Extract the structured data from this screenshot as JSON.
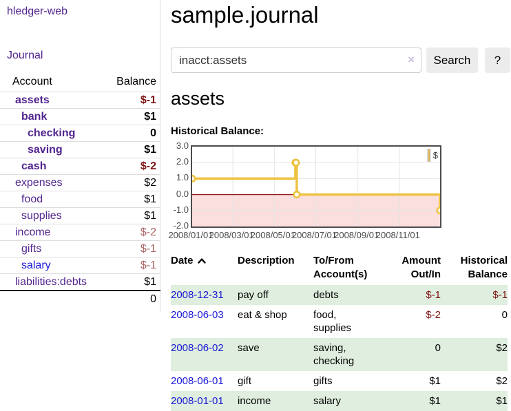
{
  "sidebar": {
    "brand": "hledger-web",
    "journal_link": "Journal",
    "accounts": {
      "headers": {
        "account": "Account",
        "balance": "Balance"
      },
      "rows": [
        {
          "name": "assets",
          "indent": 1,
          "in_account": true,
          "balance": "$-1",
          "neg": "strong",
          "link_style": "purple"
        },
        {
          "name": "bank",
          "indent": 2,
          "in_account": true,
          "balance": "$1",
          "neg": "none",
          "link_style": "purple"
        },
        {
          "name": "checking",
          "indent": 3,
          "in_account": true,
          "balance": "0",
          "neg": "none",
          "link_style": "purple"
        },
        {
          "name": "saving",
          "indent": 3,
          "in_account": true,
          "balance": "$1",
          "neg": "none",
          "link_style": "purple"
        },
        {
          "name": "cash",
          "indent": 2,
          "in_account": true,
          "balance": "$-2",
          "neg": "strong",
          "link_style": "purple"
        },
        {
          "name": "expenses",
          "indent": 1,
          "in_account": false,
          "balance": "$2",
          "neg": "none",
          "link_style": "purple"
        },
        {
          "name": "food",
          "indent": 2,
          "in_account": false,
          "balance": "$1",
          "neg": "none",
          "link_style": "purple"
        },
        {
          "name": "supplies",
          "indent": 2,
          "in_account": false,
          "balance": "$1",
          "neg": "none",
          "link_style": "purple"
        },
        {
          "name": "income",
          "indent": 1,
          "in_account": false,
          "balance": "$-2",
          "neg": "light",
          "link_style": "purple"
        },
        {
          "name": "gifts",
          "indent": 2,
          "in_account": false,
          "balance": "$-1",
          "neg": "light",
          "link_style": "purple"
        },
        {
          "name": "salary",
          "indent": 2,
          "in_account": false,
          "balance": "$-1",
          "neg": "light",
          "link_style": "blue"
        },
        {
          "name": "liabilities:debts",
          "indent": 1,
          "in_account": false,
          "balance": "$1",
          "neg": "none",
          "link_style": "purple"
        }
      ],
      "total": "0"
    }
  },
  "main": {
    "title": "sample.journal",
    "account_heading": "assets",
    "chart_label": "Historical Balance:"
  },
  "search": {
    "query": "inacct:assets",
    "clear_icon": "×",
    "button_label": "Search",
    "help_label": "?"
  },
  "chart_data": {
    "type": "line",
    "step": true,
    "title": "Historical Balance:",
    "legend": {
      "position": "top-right",
      "entries": [
        "$"
      ]
    },
    "x_domain_dates": [
      "2008-01-01",
      "2008-12-31"
    ],
    "x_domain_days": [
      0,
      365
    ],
    "y_domain": [
      -2,
      3
    ],
    "grid": true,
    "series": [
      {
        "name": "$",
        "color": "#edc240",
        "points": [
          {
            "date": "2008-01-01",
            "day": 0,
            "value": 1
          },
          {
            "date": "2008-06-01",
            "day": 152,
            "value": 2
          },
          {
            "date": "2008-06-02",
            "day": 153,
            "value": 2
          },
          {
            "date": "2008-06-03",
            "day": 154,
            "value": 0
          },
          {
            "date": "2008-12-31",
            "day": 365,
            "value": -1
          }
        ]
      }
    ],
    "x_ticks": [
      {
        "day": 0,
        "label": "2008/01/01"
      },
      {
        "day": 60,
        "label": "2008/03/01"
      },
      {
        "day": 121,
        "label": "2008/05/01"
      },
      {
        "day": 182,
        "label": "2008/07/01"
      },
      {
        "day": 244,
        "label": "2008/09/01"
      },
      {
        "day": 305,
        "label": "2008/11/01"
      }
    ],
    "y_ticks": [
      {
        "value": 3,
        "label": "3.0"
      },
      {
        "value": 2,
        "label": "2.0"
      },
      {
        "value": 1,
        "label": "1.0"
      },
      {
        "value": 0,
        "label": "0.0"
      },
      {
        "value": -1,
        "label": "-1.0"
      },
      {
        "value": -2,
        "label": "-2.0"
      }
    ],
    "negative_fill": "#fbdede",
    "zero_line_color": "#9c1a1a",
    "grid_color": "#e5e5e5",
    "frame_color": "#4c4c4c"
  },
  "register": {
    "headers": [
      {
        "label": "Date",
        "sortable": true,
        "align": "l"
      },
      {
        "label": "Description",
        "align": "l"
      },
      {
        "label": "To/From Account(s)",
        "align": "l"
      },
      {
        "label": "Amount Out/In",
        "align": "r"
      },
      {
        "label": "Historical Balance",
        "align": "r"
      }
    ],
    "rows": [
      {
        "date": "2008-12-31",
        "description": "pay off",
        "accounts": "debts",
        "amount": "$-1",
        "amount_negative": true,
        "balance": "$-1",
        "balance_negative": true,
        "shaded": true
      },
      {
        "date": "2008-06-03",
        "description": "eat & shop",
        "accounts": "food, supplies",
        "amount": "$-2",
        "amount_negative": true,
        "balance": "0",
        "balance_negative": false,
        "shaded": false
      },
      {
        "date": "2008-06-02",
        "description": "save",
        "accounts": "saving, checking",
        "amount": "0",
        "amount_negative": false,
        "balance": "$2",
        "balance_negative": false,
        "shaded": true
      },
      {
        "date": "2008-06-01",
        "description": "gift",
        "accounts": "gifts",
        "amount": "$1",
        "amount_negative": false,
        "balance": "$2",
        "balance_negative": false,
        "shaded": false
      },
      {
        "date": "2008-01-01",
        "description": "income",
        "accounts": "salary",
        "amount": "$1",
        "amount_negative": false,
        "balance": "$1",
        "balance_negative": false,
        "shaded": true
      }
    ]
  },
  "colors": {
    "link_purple": "#52258f",
    "link_blue": "#1a18d6",
    "negative_dark": "#7d1212",
    "negative_light": "#aa6464",
    "row_shade": "#dfeedf",
    "chart_line": "#edc240",
    "chart_negative_fill": "#fbdede",
    "chart_zero_line": "#9c1a1a"
  }
}
